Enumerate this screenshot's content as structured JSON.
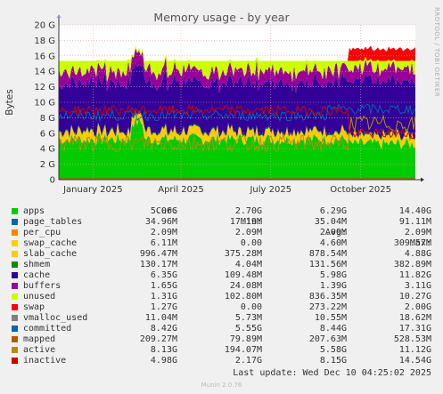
{
  "chart_data": {
    "type": "area",
    "title": "Memory usage - by year",
    "ylabel": "Bytes",
    "ylim": [
      0,
      20
    ],
    "y_ticks": [
      "0",
      "2 G",
      "4 G",
      "6 G",
      "8 G",
      "10 G",
      "12 G",
      "14 G",
      "16 G",
      "18 G",
      "20 G"
    ],
    "x_ticks": [
      "January 2025",
      "April 2025",
      "July 2025",
      "October 2025"
    ],
    "grid": true,
    "stacked": true,
    "x_range_days": [
      -365,
      0
    ],
    "x_tick_days": [
      -330,
      -240,
      -148,
      -56
    ],
    "series": [
      {
        "name": "apps",
        "color": "#00cc00",
        "base": 5.06
      },
      {
        "name": "page_tables",
        "color": "#0066b3",
        "base": 0.035
      },
      {
        "name": "per_cpu",
        "color": "#ff8000",
        "base": 0.002
      },
      {
        "name": "swap_cache",
        "color": "#ffcc00",
        "base": 0.006
      },
      {
        "name": "slab_cache",
        "color": "#ffcc00",
        "base": 0.9
      },
      {
        "name": "shmem",
        "color": "#008f00",
        "base": 0.13
      },
      {
        "name": "cache",
        "color": "#330099",
        "base": 5.98
      },
      {
        "name": "buffers",
        "color": "#990099",
        "base": 1.39
      },
      {
        "name": "unused",
        "color": "#ccff00",
        "base": 0.84
      },
      {
        "name": "swap",
        "color": "#ff0000",
        "base": 0.27
      }
    ],
    "lines": [
      {
        "name": "vmalloc_used",
        "color": "#808080",
        "base": 0.011
      },
      {
        "name": "committed",
        "color": "#0066b3",
        "base": 8.44
      },
      {
        "name": "mapped",
        "color": "#b35a00",
        "base": 0.21
      },
      {
        "name": "active",
        "color": "#b38f00",
        "base": 5.58
      },
      {
        "name": "inactive",
        "color": "#cc0000",
        "base": 8.15
      }
    ]
  },
  "watermark": "RRDTOOL / TOBI OETIKER",
  "legend": {
    "headers": {
      "cur": "Cur:",
      "min": "Min:",
      "avg": "Avg:",
      "max": "Max:"
    },
    "rows": [
      {
        "name": "apps",
        "color": "#00cc00",
        "cur": "5.06G",
        "min": "2.70G",
        "avg": "6.29G",
        "max": "14.40G"
      },
      {
        "name": "page_tables",
        "color": "#0066b3",
        "cur": "34.96M",
        "min": "17.19M",
        "avg": "35.04M",
        "max": "91.11M"
      },
      {
        "name": "per_cpu",
        "color": "#ff8000",
        "cur": "2.09M",
        "min": "2.09M",
        "avg": "2.09M",
        "max": "2.09M"
      },
      {
        "name": "swap_cache",
        "color": "#ffcc00",
        "cur": "6.11M",
        "min": "0.00",
        "avg": "4.60M",
        "max": "309.57M"
      },
      {
        "name": "slab_cache",
        "color": "#ffcc00",
        "cur": "996.47M",
        "min": "375.28M",
        "avg": "878.54M",
        "max": "4.88G"
      },
      {
        "name": "shmem",
        "color": "#008f00",
        "cur": "130.17M",
        "min": "4.04M",
        "avg": "131.56M",
        "max": "382.89M"
      },
      {
        "name": "cache",
        "color": "#330099",
        "cur": "6.35G",
        "min": "109.48M",
        "avg": "5.98G",
        "max": "11.82G"
      },
      {
        "name": "buffers",
        "color": "#990099",
        "cur": "1.65G",
        "min": "24.08M",
        "avg": "1.39G",
        "max": "3.11G"
      },
      {
        "name": "unused",
        "color": "#ccff00",
        "cur": "1.31G",
        "min": "102.80M",
        "avg": "836.35M",
        "max": "10.27G"
      },
      {
        "name": "swap",
        "color": "#ff0000",
        "cur": "1.27G",
        "min": "0.00",
        "avg": "273.22M",
        "max": "2.00G"
      },
      {
        "name": "vmalloc_used",
        "color": "#808080",
        "cur": "11.04M",
        "min": "5.73M",
        "avg": "10.55M",
        "max": "18.62M"
      },
      {
        "name": "committed",
        "color": "#0066b3",
        "cur": "8.42G",
        "min": "5.55G",
        "avg": "8.44G",
        "max": "17.31G"
      },
      {
        "name": "mapped",
        "color": "#b35a00",
        "cur": "209.27M",
        "min": "79.89M",
        "avg": "207.63M",
        "max": "528.53M"
      },
      {
        "name": "active",
        "color": "#b38f00",
        "cur": "8.13G",
        "min": "194.07M",
        "avg": "5.58G",
        "max": "11.12G"
      },
      {
        "name": "inactive",
        "color": "#cc0000",
        "cur": "4.98G",
        "min": "2.17G",
        "avg": "8.15G",
        "max": "14.54G"
      }
    ]
  },
  "last_update": "Last update: Wed Dec 10 04:25:02 2025",
  "footer": "Munin 2.0.76"
}
